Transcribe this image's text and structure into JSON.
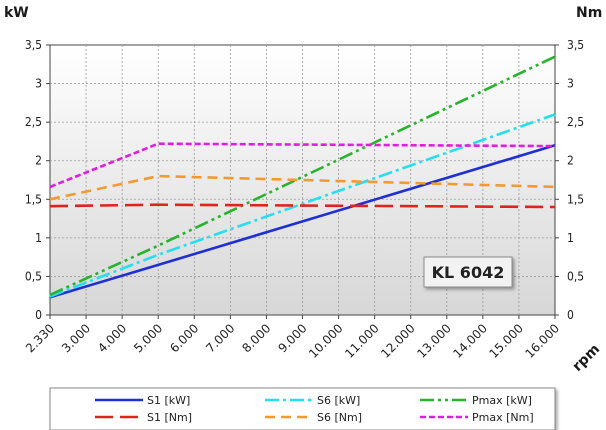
{
  "chart_data": {
    "type": "line",
    "title": "",
    "ylabel_left": "kW",
    "ylabel_right": "Nm",
    "xlabel": "rpm",
    "ylim": [
      0,
      3.5
    ],
    "yticks": [
      "0",
      "0,5",
      "1",
      "1,5",
      "2",
      "2,5",
      "3",
      "3,5"
    ],
    "x_categories": [
      "2.330",
      "3.000",
      "4.000",
      "5.000",
      "6.000",
      "7.000",
      "8.000",
      "9.000",
      "10.000",
      "11.000",
      "12.000",
      "13.000",
      "14.000",
      "15.000",
      "16.000"
    ],
    "grid": true,
    "annotation": "KL 6042",
    "legend_position": "bottom",
    "series": [
      {
        "name": "S1 [kW]",
        "color": "#1f2fd6",
        "dash": "solid",
        "x": [
          "2.330",
          "5.000",
          "16.000"
        ],
        "y": [
          0.23,
          0.65,
          2.2
        ]
      },
      {
        "name": "S6 [kW]",
        "color": "#22e0f0",
        "dash": "dashdot",
        "x": [
          "2.330",
          "5.000",
          "16.000"
        ],
        "y": [
          0.24,
          0.78,
          2.6
        ]
      },
      {
        "name": "Pmax [kW]",
        "color": "#25b52a",
        "dash": "dashdotdot",
        "x": [
          "2.330",
          "5.000",
          "16.000"
        ],
        "y": [
          0.26,
          0.9,
          3.35
        ]
      },
      {
        "name": "S1 [Nm]",
        "color": "#e0231c",
        "dash": "longdash",
        "x": [
          "2.330",
          "5.000",
          "16.000"
        ],
        "y": [
          1.41,
          1.43,
          1.4
        ]
      },
      {
        "name": "S6 [Nm]",
        "color": "#f59a2a",
        "dash": "dash",
        "x": [
          "2.330",
          "5.000",
          "16.000"
        ],
        "y": [
          1.5,
          1.8,
          1.66
        ]
      },
      {
        "name": "Pmax [Nm]",
        "color": "#e41be4",
        "dash": "shortdash",
        "x": [
          "2.330",
          "5.000",
          "16.000"
        ],
        "y": [
          1.66,
          2.22,
          2.19
        ]
      }
    ]
  }
}
